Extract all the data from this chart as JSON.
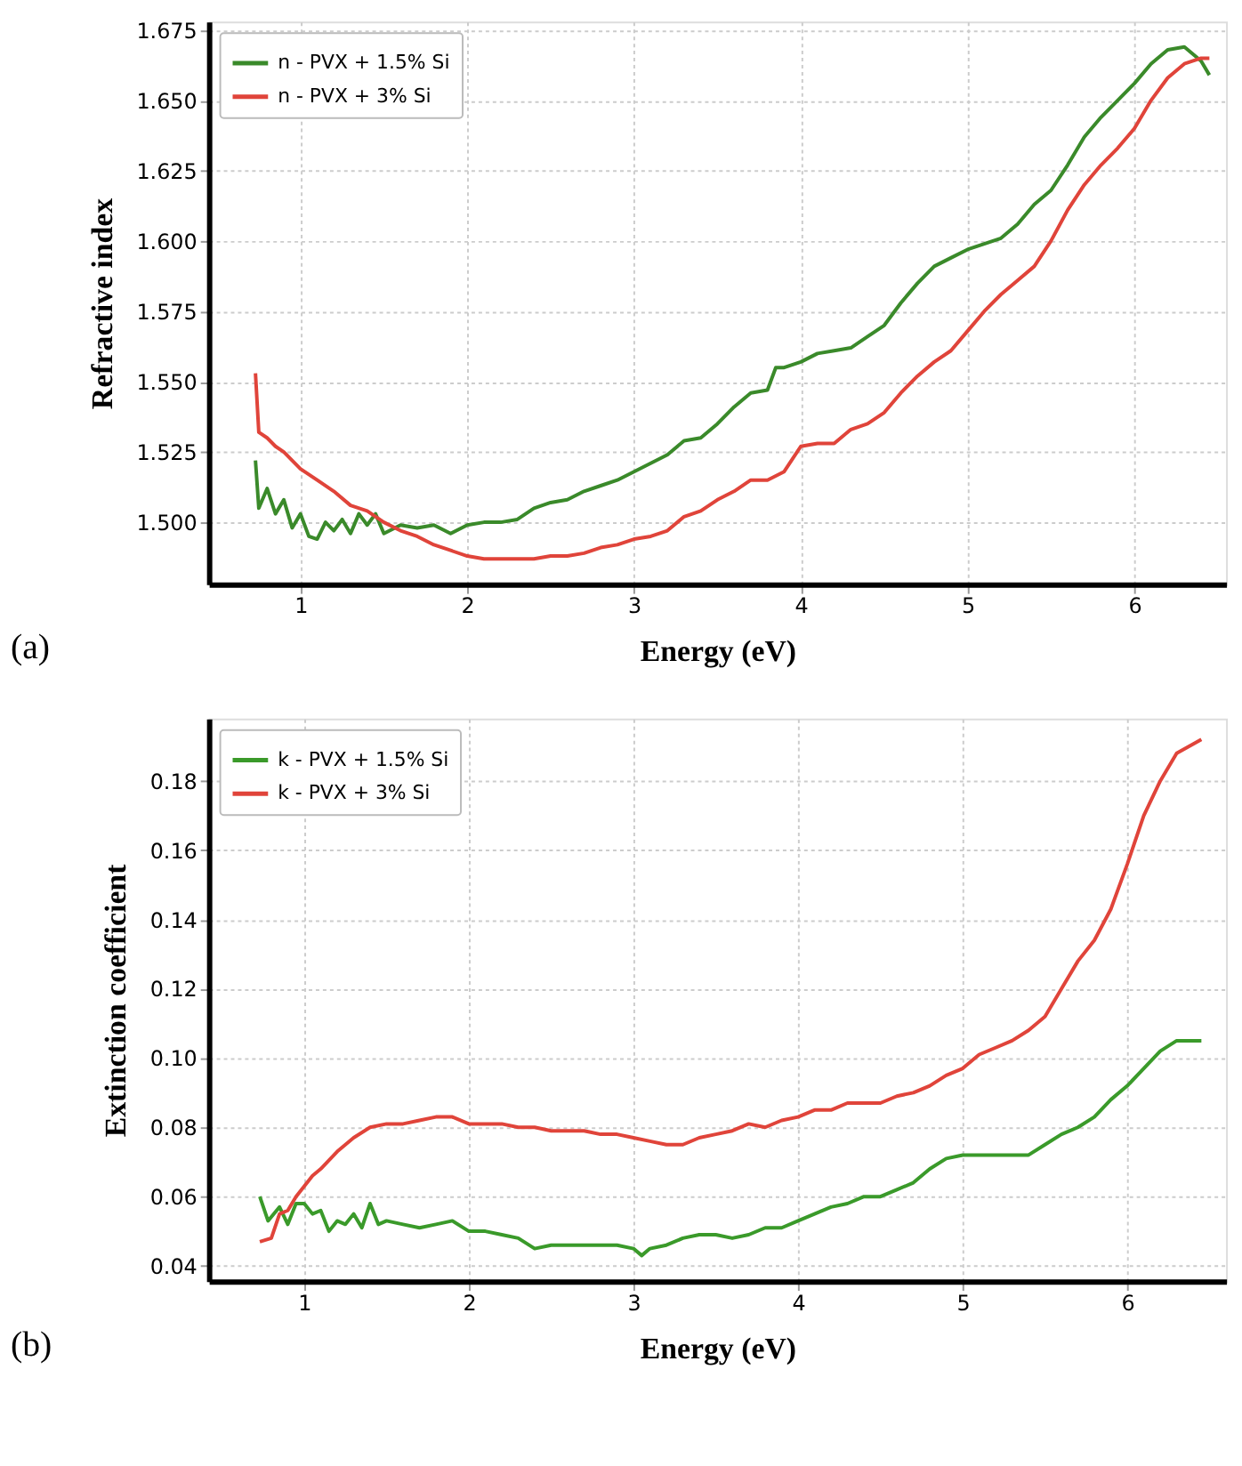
{
  "chart_data": [
    {
      "type": "line",
      "xlabel": "Energy (eV)",
      "ylabel": "Refractive index",
      "annotations": [
        "(a)"
      ],
      "xlim": [
        0.45,
        6.55
      ],
      "xticks": [
        1,
        2,
        3,
        4,
        5,
        6
      ],
      "ylim": [
        1.478,
        1.678
      ],
      "yticks": [
        {
          "value": 1.5,
          "label": "1.500"
        },
        {
          "value": 1.525,
          "label": "1.525"
        },
        {
          "value": 1.55,
          "label": "1.550"
        },
        {
          "value": 1.575,
          "label": "1.575"
        },
        {
          "value": 1.6,
          "label": "1.600"
        },
        {
          "value": 1.625,
          "label": "1.625"
        },
        {
          "value": 1.65,
          "label": "1.650"
        },
        {
          "value": 1.675,
          "label": "1.675"
        }
      ],
      "grid": true,
      "legend": "top left",
      "line_style": "solid",
      "series": [
        {
          "name": "n - PVX + 1.5% Si",
          "color": "#3a8a2a",
          "x": [
            0.73,
            0.75,
            0.8,
            0.85,
            0.9,
            0.95,
            1.0,
            1.05,
            1.1,
            1.15,
            1.2,
            1.25,
            1.3,
            1.35,
            1.4,
            1.45,
            1.5,
            1.6,
            1.7,
            1.8,
            1.9,
            2.0,
            2.1,
            2.2,
            2.3,
            2.4,
            2.5,
            2.6,
            2.7,
            2.8,
            2.9,
            3.0,
            3.1,
            3.2,
            3.3,
            3.4,
            3.5,
            3.6,
            3.7,
            3.8,
            3.85,
            3.9,
            4.0,
            4.1,
            4.2,
            4.3,
            4.4,
            4.5,
            4.6,
            4.7,
            4.8,
            4.9,
            5.0,
            5.1,
            5.2,
            5.3,
            5.4,
            5.5,
            5.6,
            5.7,
            5.8,
            5.9,
            6.0,
            6.1,
            6.2,
            6.3,
            6.4,
            6.45
          ],
          "values": [
            1.522,
            1.505,
            1.512,
            1.503,
            1.508,
            1.498,
            1.503,
            1.495,
            1.494,
            1.5,
            1.497,
            1.501,
            1.496,
            1.503,
            1.499,
            1.503,
            1.496,
            1.499,
            1.498,
            1.499,
            1.496,
            1.499,
            1.5,
            1.5,
            1.501,
            1.505,
            1.507,
            1.508,
            1.511,
            1.513,
            1.515,
            1.518,
            1.521,
            1.524,
            1.529,
            1.53,
            1.535,
            1.541,
            1.546,
            1.547,
            1.555,
            1.555,
            1.557,
            1.56,
            1.561,
            1.562,
            1.566,
            1.57,
            1.578,
            1.585,
            1.591,
            1.594,
            1.597,
            1.599,
            1.601,
            1.606,
            1.613,
            1.618,
            1.627,
            1.637,
            1.644,
            1.65,
            1.656,
            1.663,
            1.668,
            1.669,
            1.664,
            1.659
          ]
        },
        {
          "name": "n - PVX + 3% Si",
          "color": "#e0443a",
          "x": [
            0.73,
            0.75,
            0.8,
            0.85,
            0.9,
            0.95,
            1.0,
            1.1,
            1.2,
            1.3,
            1.4,
            1.5,
            1.6,
            1.7,
            1.8,
            1.9,
            2.0,
            2.1,
            2.2,
            2.3,
            2.4,
            2.5,
            2.6,
            2.7,
            2.8,
            2.9,
            3.0,
            3.1,
            3.2,
            3.3,
            3.4,
            3.5,
            3.6,
            3.7,
            3.8,
            3.9,
            4.0,
            4.1,
            4.2,
            4.3,
            4.4,
            4.5,
            4.6,
            4.7,
            4.8,
            4.9,
            5.0,
            5.1,
            5.2,
            5.3,
            5.4,
            5.5,
            5.6,
            5.7,
            5.8,
            5.9,
            6.0,
            6.1,
            6.2,
            6.3,
            6.4,
            6.45
          ],
          "values": [
            1.553,
            1.532,
            1.53,
            1.527,
            1.525,
            1.522,
            1.519,
            1.515,
            1.511,
            1.506,
            1.504,
            1.5,
            1.497,
            1.495,
            1.492,
            1.49,
            1.488,
            1.487,
            1.487,
            1.487,
            1.487,
            1.488,
            1.488,
            1.489,
            1.491,
            1.492,
            1.494,
            1.495,
            1.497,
            1.502,
            1.504,
            1.508,
            1.511,
            1.515,
            1.515,
            1.518,
            1.527,
            1.528,
            1.528,
            1.533,
            1.535,
            1.539,
            1.546,
            1.552,
            1.557,
            1.561,
            1.568,
            1.575,
            1.581,
            1.586,
            1.591,
            1.6,
            1.611,
            1.62,
            1.627,
            1.633,
            1.64,
            1.65,
            1.658,
            1.663,
            1.665,
            1.665
          ]
        }
      ]
    },
    {
      "type": "line",
      "xlabel": "Energy (eV)",
      "ylabel": "Extinction coefficient",
      "annotations": [
        "(b)"
      ],
      "xlim": [
        0.42,
        6.6
      ],
      "xticks": [
        1,
        2,
        3,
        4,
        5,
        6
      ],
      "ylim": [
        0.0356,
        0.198
      ],
      "yticks": [
        {
          "value": 0.04,
          "label": "0.04"
        },
        {
          "value": 0.06,
          "label": "0.06"
        },
        {
          "value": 0.08,
          "label": "0.08"
        },
        {
          "value": 0.1,
          "label": "0.10"
        },
        {
          "value": 0.12,
          "label": "0.12"
        },
        {
          "value": 0.14,
          "label": "0.14"
        },
        {
          "value": 0.16,
          "label": "0.16"
        },
        {
          "value": 0.18,
          "label": "0.18"
        }
      ],
      "grid": true,
      "legend": "top left",
      "line_style": "solid",
      "series": [
        {
          "name": "k - PVX + 1.5% Si",
          "color": "#3a9a2a",
          "x": [
            0.73,
            0.78,
            0.85,
            0.9,
            0.95,
            1.0,
            1.05,
            1.1,
            1.15,
            1.2,
            1.25,
            1.3,
            1.35,
            1.4,
            1.45,
            1.5,
            1.6,
            1.7,
            1.8,
            1.9,
            2.0,
            2.1,
            2.2,
            2.3,
            2.4,
            2.5,
            2.6,
            2.7,
            2.8,
            2.9,
            3.0,
            3.05,
            3.1,
            3.2,
            3.3,
            3.4,
            3.5,
            3.6,
            3.7,
            3.8,
            3.9,
            4.0,
            4.1,
            4.2,
            4.3,
            4.4,
            4.5,
            4.6,
            4.7,
            4.8,
            4.9,
            5.0,
            5.1,
            5.2,
            5.3,
            5.4,
            5.5,
            5.6,
            5.7,
            5.8,
            5.9,
            6.0,
            6.1,
            6.2,
            6.3,
            6.45
          ],
          "values": [
            0.06,
            0.053,
            0.057,
            0.052,
            0.058,
            0.058,
            0.055,
            0.056,
            0.05,
            0.053,
            0.052,
            0.055,
            0.051,
            0.058,
            0.052,
            0.053,
            0.052,
            0.051,
            0.052,
            0.053,
            0.05,
            0.05,
            0.049,
            0.048,
            0.045,
            0.046,
            0.046,
            0.046,
            0.046,
            0.046,
            0.045,
            0.043,
            0.045,
            0.046,
            0.048,
            0.049,
            0.049,
            0.048,
            0.049,
            0.051,
            0.051,
            0.053,
            0.055,
            0.057,
            0.058,
            0.06,
            0.06,
            0.062,
            0.064,
            0.068,
            0.071,
            0.072,
            0.072,
            0.072,
            0.072,
            0.072,
            0.075,
            0.078,
            0.08,
            0.083,
            0.088,
            0.092,
            0.097,
            0.102,
            0.105,
            0.105
          ]
        },
        {
          "name": "k - PVX + 3% Si",
          "color": "#e0443a",
          "x": [
            0.73,
            0.8,
            0.85,
            0.9,
            0.95,
            1.0,
            1.05,
            1.1,
            1.2,
            1.3,
            1.4,
            1.5,
            1.6,
            1.7,
            1.8,
            1.9,
            2.0,
            2.1,
            2.2,
            2.3,
            2.4,
            2.5,
            2.6,
            2.7,
            2.8,
            2.9,
            3.0,
            3.1,
            3.2,
            3.3,
            3.4,
            3.5,
            3.6,
            3.7,
            3.8,
            3.9,
            4.0,
            4.1,
            4.2,
            4.3,
            4.4,
            4.5,
            4.6,
            4.7,
            4.8,
            4.9,
            5.0,
            5.1,
            5.2,
            5.3,
            5.4,
            5.5,
            5.6,
            5.7,
            5.8,
            5.9,
            6.0,
            6.1,
            6.2,
            6.3,
            6.45
          ],
          "values": [
            0.047,
            0.048,
            0.055,
            0.056,
            0.06,
            0.063,
            0.066,
            0.068,
            0.073,
            0.077,
            0.08,
            0.081,
            0.081,
            0.082,
            0.083,
            0.083,
            0.081,
            0.081,
            0.081,
            0.08,
            0.08,
            0.079,
            0.079,
            0.079,
            0.078,
            0.078,
            0.077,
            0.076,
            0.075,
            0.075,
            0.077,
            0.078,
            0.079,
            0.081,
            0.08,
            0.082,
            0.083,
            0.085,
            0.085,
            0.087,
            0.087,
            0.087,
            0.089,
            0.09,
            0.092,
            0.095,
            0.097,
            0.101,
            0.103,
            0.105,
            0.108,
            0.112,
            0.12,
            0.128,
            0.134,
            0.143,
            0.156,
            0.17,
            0.18,
            0.188,
            0.192
          ]
        }
      ]
    }
  ]
}
